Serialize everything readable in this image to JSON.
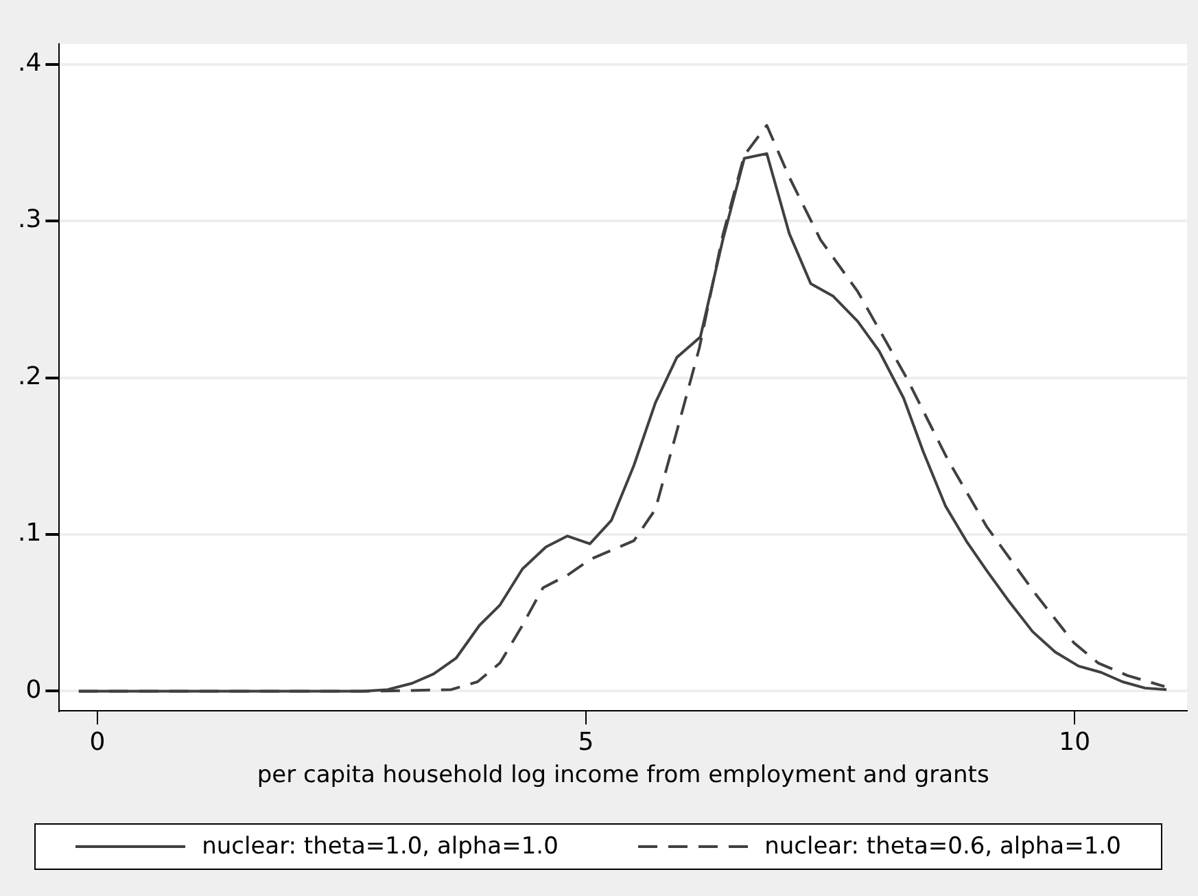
{
  "chart_data": {
    "type": "line",
    "xlabel": "per capita household log income from employment and grants",
    "xlim": [
      -0.39,
      11.15
    ],
    "xticks": [
      0,
      5,
      10
    ],
    "ylim": [
      -0.0125,
      0.413
    ],
    "yticks": [
      0,
      {
        "value": 0.1,
        "label": ".1"
      },
      {
        "value": 0.2,
        "label": ".2"
      },
      {
        "value": 0.3,
        "label": ".3"
      },
      {
        "value": 0.4,
        "label": ".4"
      }
    ],
    "grid": "y",
    "legend": "bottom",
    "marker": "none",
    "series": [
      {
        "name": "nuclear: theta=1.0, alpha=1.0",
        "color": "#404040",
        "line_style": "solid",
        "x": [
          -0.19,
          0.25,
          0.52,
          1.0,
          1.5,
          2.0,
          2.5,
          2.72,
          2.97,
          3.22,
          3.44,
          3.67,
          3.91,
          4.12,
          4.35,
          4.59,
          4.81,
          5.04,
          5.26,
          5.49,
          5.71,
          5.93,
          6.17,
          6.4,
          6.62,
          6.85,
          7.08,
          7.3,
          7.53,
          7.78,
          8.0,
          8.25,
          8.45,
          8.68,
          8.9,
          9.1,
          9.32,
          9.57,
          9.8,
          10.04,
          10.27,
          10.49,
          10.72,
          10.94
        ],
        "values": [
          0,
          0,
          0,
          0,
          0,
          0,
          0,
          0,
          0.001,
          0.005,
          0.011,
          0.021,
          0.042,
          0.055,
          0.078,
          0.092,
          0.099,
          0.094,
          0.109,
          0.144,
          0.184,
          0.213,
          0.226,
          0.288,
          0.34,
          0.343,
          0.292,
          0.26,
          0.252,
          0.236,
          0.217,
          0.187,
          0.153,
          0.118,
          0.095,
          0.077,
          0.058,
          0.038,
          0.025,
          0.016,
          0.012,
          0.006,
          0.002,
          0.001
        ]
      },
      {
        "name": "nuclear: theta=0.6, alpha=1.0",
        "color": "#404040",
        "line_style": "dashed",
        "x": [
          -0.19,
          0.5,
          1.0,
          1.5,
          2.0,
          2.5,
          2.87,
          3.62,
          3.89,
          4.12,
          4.34,
          4.56,
          4.81,
          5.04,
          5.49,
          5.71,
          5.93,
          6.16,
          6.4,
          6.62,
          6.85,
          7.08,
          7.4,
          7.78,
          8.28,
          8.7,
          9.1,
          9.6,
          9.99,
          10.24,
          10.54,
          10.92
        ],
        "values": [
          0,
          0,
          0,
          0,
          0,
          0,
          0,
          0.001,
          0.006,
          0.018,
          0.041,
          0.066,
          0.074,
          0.084,
          0.096,
          0.116,
          0.166,
          0.219,
          0.291,
          0.342,
          0.361,
          0.328,
          0.288,
          0.255,
          0.2,
          0.148,
          0.105,
          0.062,
          0.031,
          0.018,
          0.01,
          0.003
        ]
      }
    ]
  }
}
